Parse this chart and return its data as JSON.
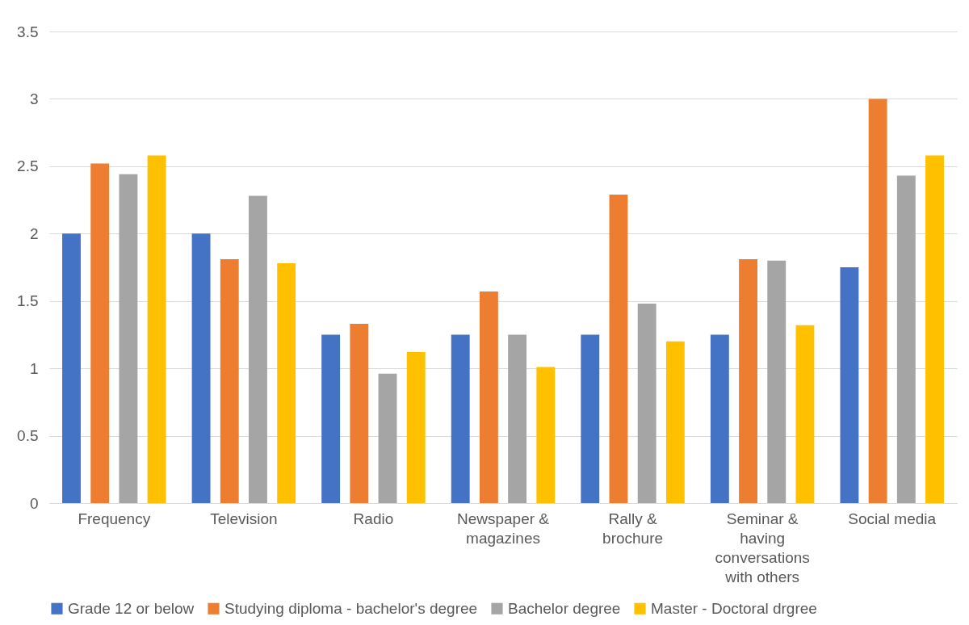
{
  "chart_data": {
    "type": "bar",
    "categories": [
      "Frequency",
      "Television",
      "Radio",
      "Newspaper & magazines",
      "Rally & brochure",
      "Seminar & having conversations with others",
      "Social media"
    ],
    "series": [
      {
        "name": "Grade 12 or below",
        "color": "#4472c4",
        "values": [
          2.0,
          2.0,
          1.25,
          1.25,
          1.25,
          1.25,
          1.75
        ]
      },
      {
        "name": "Studying diploma - bachelor's degree",
        "color": "#ed7d31",
        "values": [
          2.52,
          1.81,
          1.33,
          1.57,
          2.29,
          1.81,
          3.0
        ]
      },
      {
        "name": "Bachelor degree",
        "color": "#a5a5a5",
        "values": [
          2.44,
          2.28,
          0.96,
          1.25,
          1.48,
          1.8,
          2.43
        ]
      },
      {
        "name": "Master - Doctoral drgree",
        "color": "#ffc000",
        "values": [
          2.58,
          1.78,
          1.12,
          1.01,
          1.2,
          1.32,
          2.58
        ]
      }
    ],
    "ylim": [
      0,
      3.5
    ],
    "yticks": [
      0,
      0.5,
      1,
      1.5,
      2,
      2.5,
      3,
      3.5
    ],
    "grid": "y",
    "legend": "bottom"
  }
}
